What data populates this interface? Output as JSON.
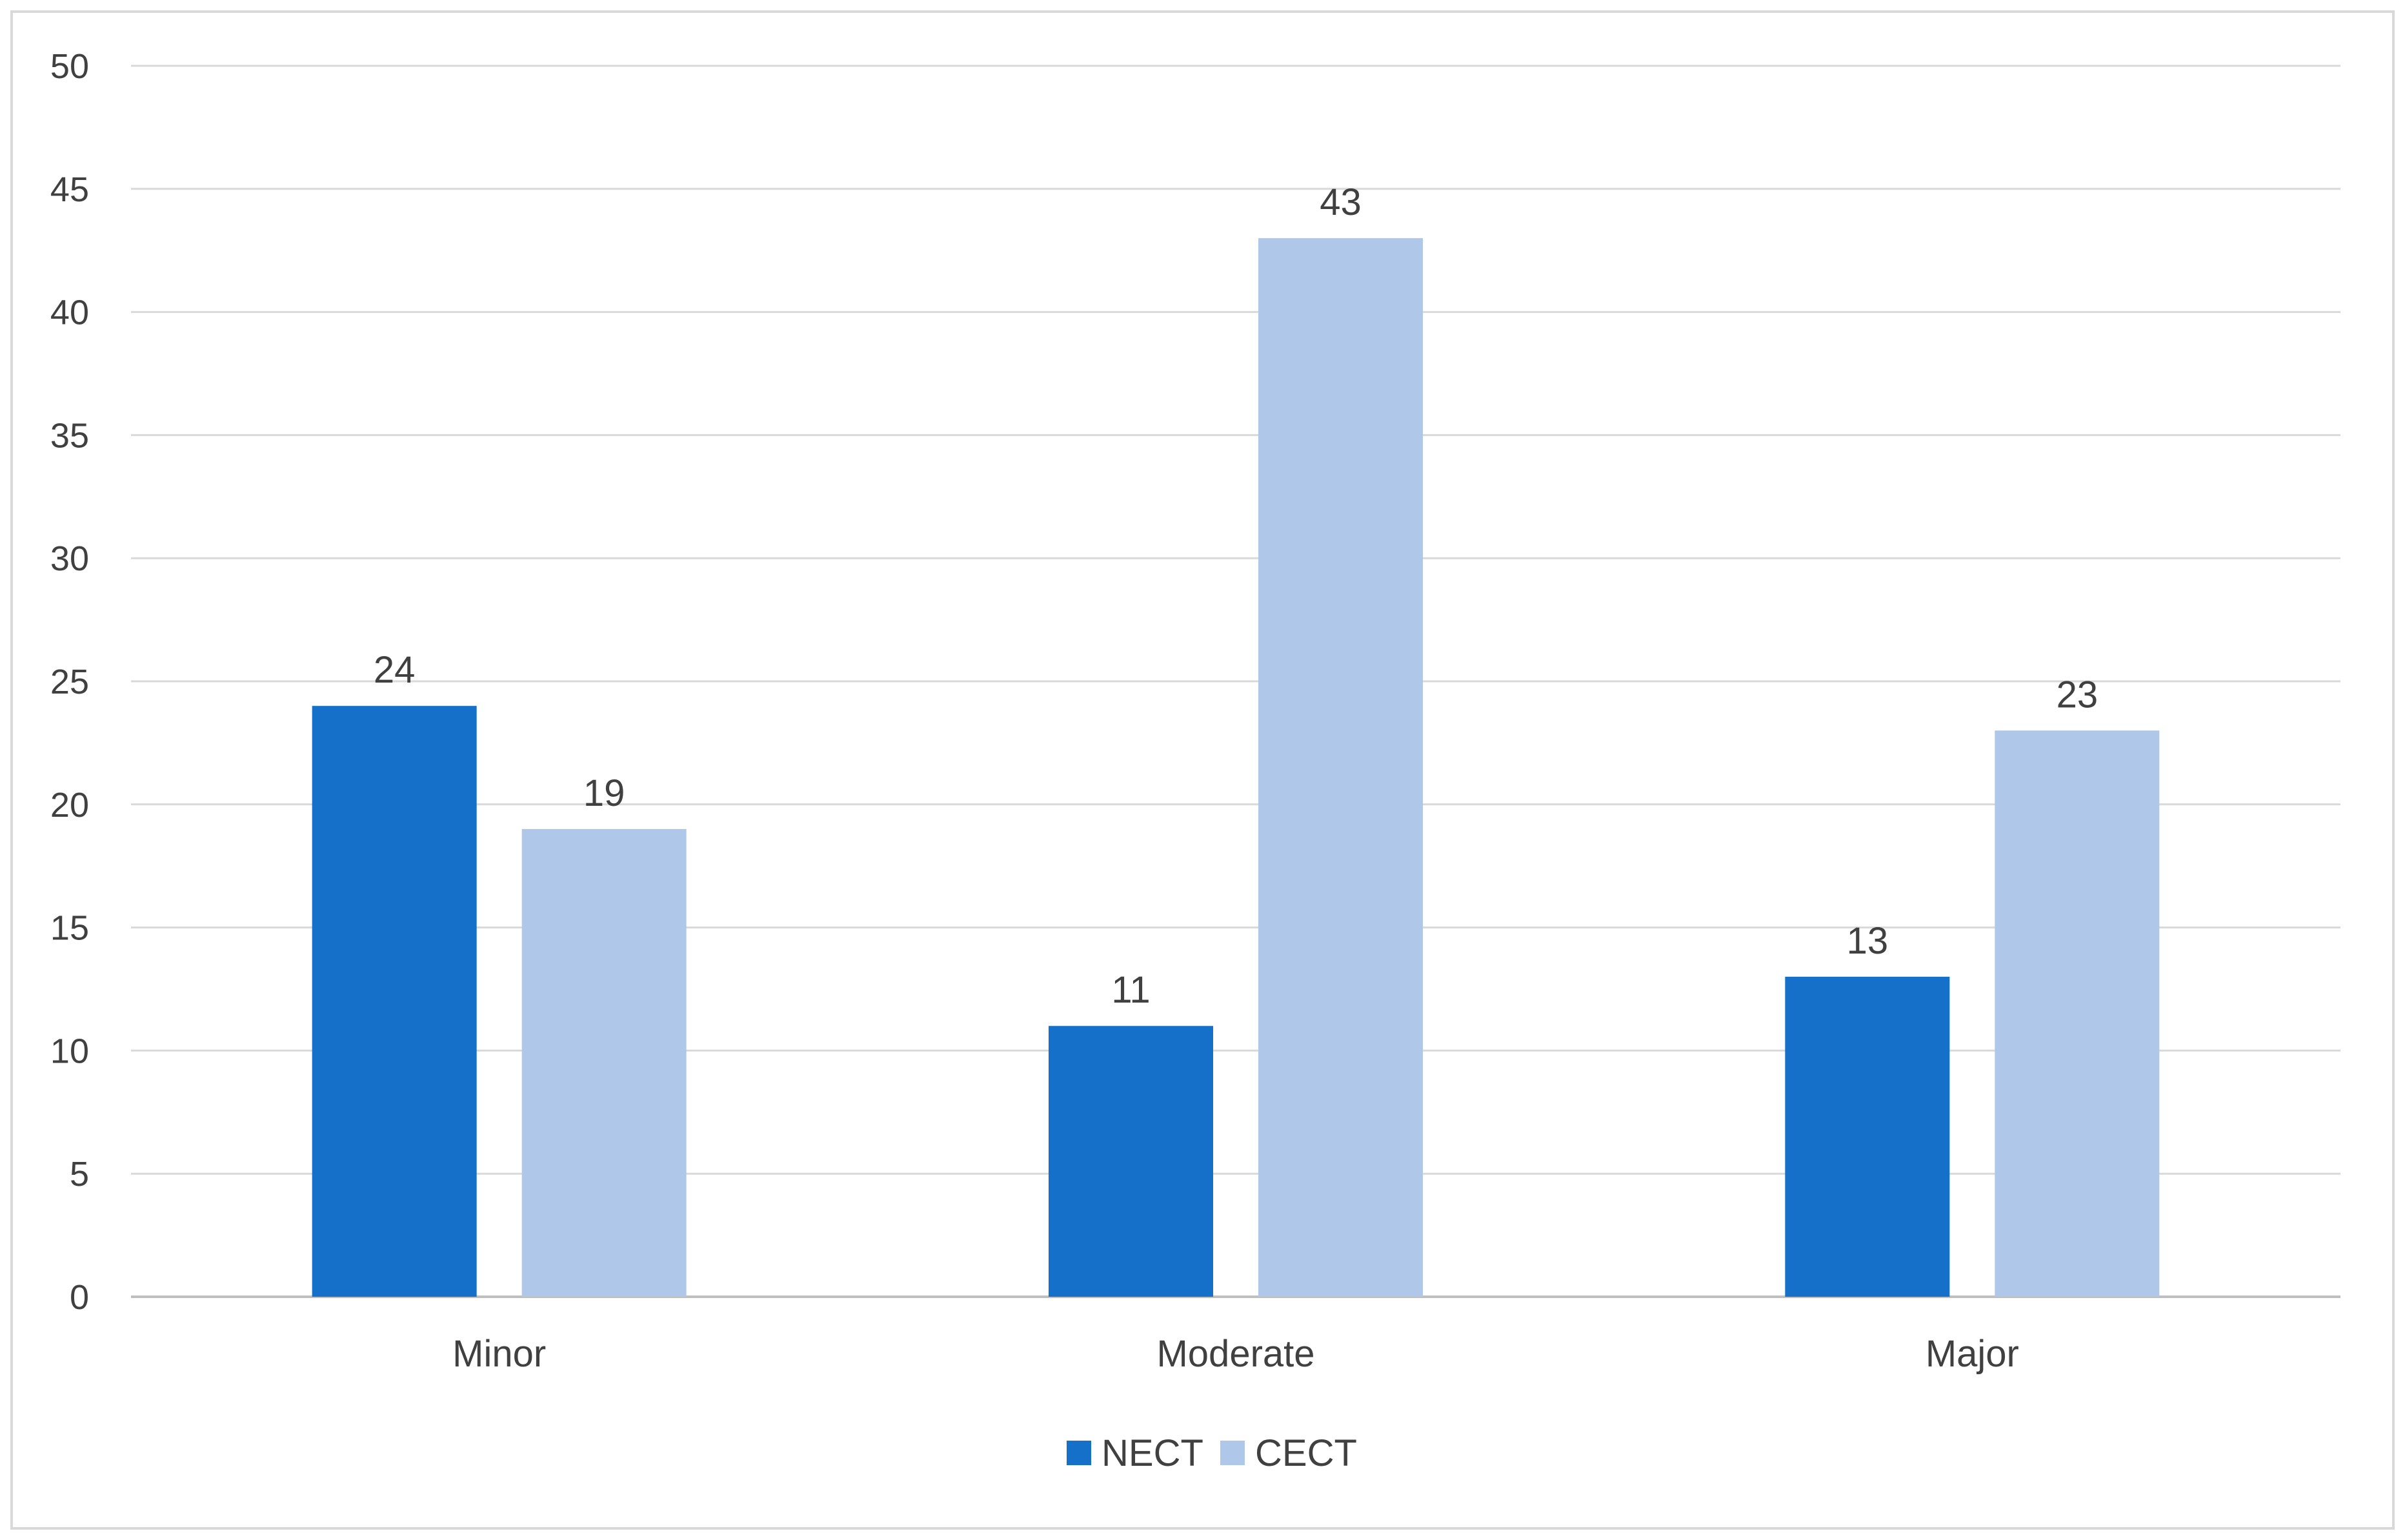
{
  "chart_data": {
    "type": "bar",
    "title": "",
    "xlabel": "",
    "ylabel": "",
    "categories": [
      "Minor",
      "Moderate",
      "Major"
    ],
    "series": [
      {
        "name": "NECT",
        "color": "#1570CA",
        "values": [
          24,
          11,
          13
        ]
      },
      {
        "name": "CECT",
        "color": "#AFC8E9",
        "values": [
          19,
          43,
          23
        ]
      }
    ],
    "ylim": [
      0,
      50
    ],
    "yticks": [
      0,
      5,
      10,
      15,
      20,
      25,
      30,
      35,
      40,
      45,
      50
    ],
    "grid": true,
    "gridline_color": "#D9D9D9",
    "axis_color": "#BFBFBF",
    "legend_position": "bottom-center",
    "data_labels": true
  }
}
